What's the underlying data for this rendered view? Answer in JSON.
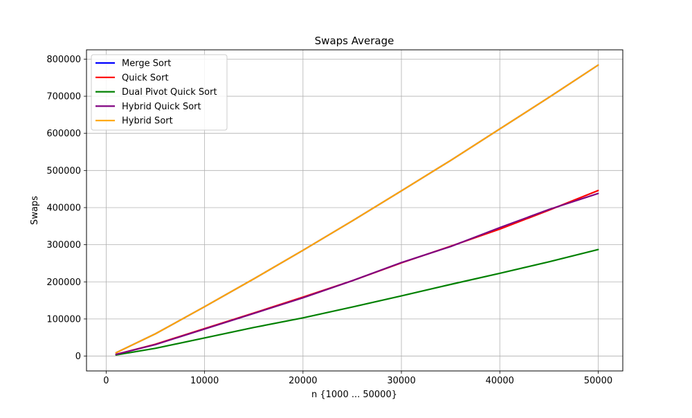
{
  "chart_data": {
    "type": "line",
    "title": "Swaps Average",
    "xlabel": "n {1000 ... 50000}",
    "ylabel": "Swaps",
    "xlim": [
      -2000,
      52500
    ],
    "ylim": [
      -40000,
      825000
    ],
    "xticks": [
      0,
      10000,
      20000,
      30000,
      40000,
      50000
    ],
    "yticks": [
      0,
      100000,
      200000,
      300000,
      400000,
      500000,
      600000,
      700000,
      800000
    ],
    "grid": true,
    "legend_position": "top-left",
    "x": [
      1000,
      5000,
      10000,
      15000,
      20000,
      25000,
      30000,
      35000,
      40000,
      45000,
      50000
    ],
    "series": [
      {
        "name": "Merge Sort",
        "color": "#0000ff",
        "values": [
          9000,
          60000,
          133000,
          208000,
          285000,
          364000,
          445000,
          527000,
          612000,
          697000,
          784000
        ]
      },
      {
        "name": "Quick Sort",
        "color": "#ff0000",
        "values": [
          4500,
          32000,
          74000,
          116000,
          159000,
          203000,
          251000,
          296000,
          342000,
          393000,
          446000
        ]
      },
      {
        "name": "Dual Pivot Quick Sort",
        "color": "#008000",
        "values": [
          3000,
          21000,
          49000,
          77000,
          103000,
          132000,
          162000,
          193000,
          223000,
          254000,
          287000
        ]
      },
      {
        "name": "Hybrid Quick Sort",
        "color": "#800080",
        "values": [
          4500,
          31000,
          73000,
          115000,
          157000,
          203000,
          252000,
          295000,
          346000,
          395000,
          438000
        ]
      },
      {
        "name": "Hybrid Sort",
        "color": "#ffa500",
        "values": [
          9000,
          60000,
          133000,
          208000,
          285000,
          364000,
          445000,
          527000,
          612000,
          697000,
          784000
        ]
      }
    ]
  }
}
